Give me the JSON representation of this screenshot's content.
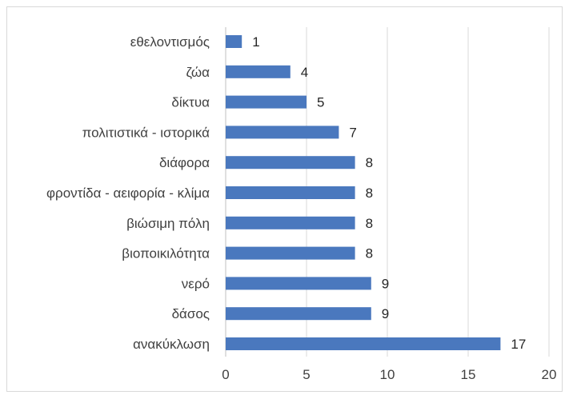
{
  "chart_data": {
    "type": "bar",
    "orientation": "horizontal",
    "categories": [
      "εθελοντισμός",
      "ζώα",
      "δίκτυα",
      "πολιτιστικά - ιστορικά",
      "διάφορα",
      "φροντίδα - αειφορία - κλίμα",
      "βιώσιμη πόλη",
      "βιοποικιλότητα",
      "νερό",
      "δάσος",
      "ανακύκλωση"
    ],
    "values": [
      1,
      4,
      5,
      7,
      8,
      8,
      8,
      8,
      9,
      9,
      17
    ],
    "xticks": [
      "0",
      "5",
      "10",
      "15",
      "20"
    ],
    "xlim": [
      0,
      20
    ],
    "grid": "vertical",
    "data_labels": true,
    "bar_color": "#4a78be"
  }
}
